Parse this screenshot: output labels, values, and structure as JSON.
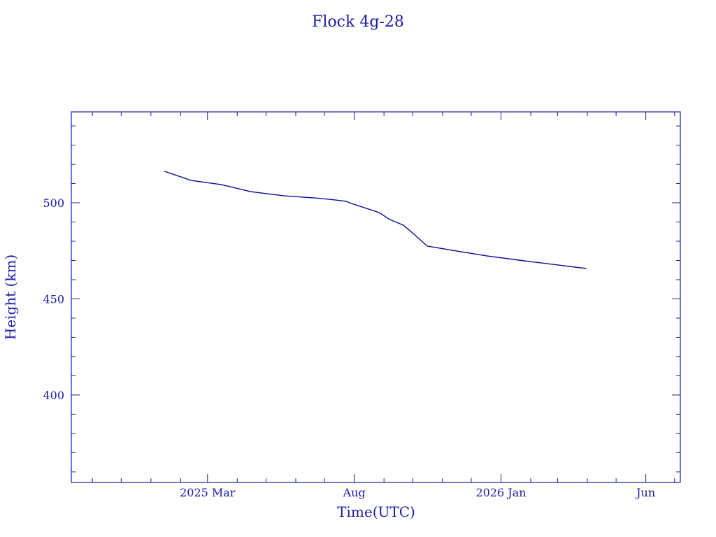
{
  "chart_data": {
    "type": "line",
    "title": "Flock 4g-28",
    "xlabel": "Time(UTC)",
    "ylabel": "Height (km)",
    "xlim": [
      "2024-10-10",
      "2026-07-07"
    ],
    "ylim": [
      354.5,
      547.3
    ],
    "grid": false,
    "color": "#1a1aa6",
    "x_ticks": [
      {
        "date": "2025-03-01",
        "label": "2025 Mar"
      },
      {
        "date": "2025-08-01",
        "label": "Aug"
      },
      {
        "date": "2026-01-01",
        "label": "2026 Jan"
      },
      {
        "date": "2026-06-01",
        "label": "Jun"
      }
    ],
    "x_minor_ticks": [
      "2024-11-01",
      "2024-12-01",
      "2025-01-01",
      "2025-02-01",
      "2025-04-01",
      "2025-05-01",
      "2025-06-01",
      "2025-07-01",
      "2025-09-01",
      "2025-10-01",
      "2025-11-01",
      "2025-12-01",
      "2026-02-01",
      "2026-03-01",
      "2026-04-01",
      "2026-05-01",
      "2026-07-01"
    ],
    "y_ticks": [
      400,
      450,
      500
    ],
    "y_minor_step": 10,
    "series": [
      {
        "name": "Flock 4g-28",
        "x": [
          "2025-01-15",
          "2025-02-12",
          "2025-03-15",
          "2025-04-15",
          "2025-05-20",
          "2025-06-22",
          "2025-07-12",
          "2025-07-24",
          "2025-07-27",
          "2025-08-27",
          "2025-09-07",
          "2025-09-21",
          "2025-09-30",
          "2025-10-16",
          "2025-11-11",
          "2025-12-17",
          "2026-01-25",
          "2026-03-02",
          "2026-03-31"
        ],
        "y": [
          516.4,
          511.6,
          509.5,
          505.8,
          503.6,
          502.5,
          501.5,
          500.7,
          500.0,
          494.9,
          491.3,
          488.4,
          484.7,
          477.5,
          475.3,
          472.4,
          469.8,
          467.6,
          465.8
        ]
      }
    ]
  }
}
